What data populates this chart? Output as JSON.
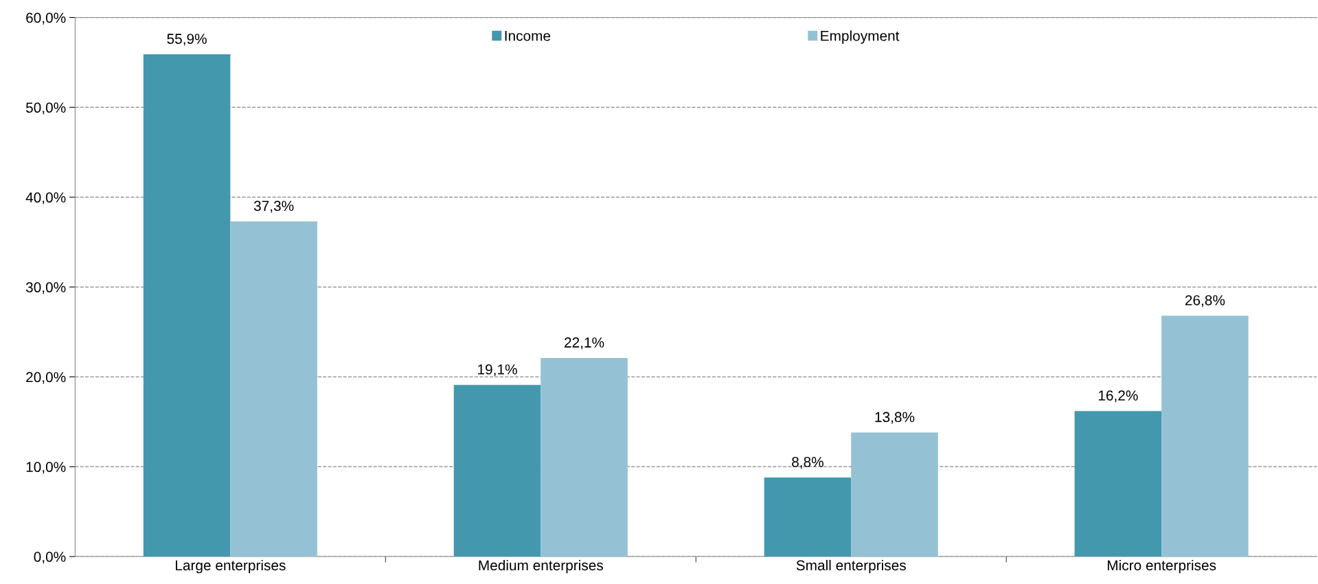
{
  "chart_data": {
    "type": "bar",
    "categories": [
      "Large enterprises",
      "Medium enterprises",
      "Small enterprises",
      "Micro enterprises"
    ],
    "series": [
      {
        "name": "Income",
        "color": "#4398ae",
        "values": [
          55.9,
          19.1,
          8.8,
          16.2
        ],
        "value_labels": [
          "55,9%",
          "19,1%",
          "8,8%",
          "16,2%"
        ]
      },
      {
        "name": "Employment",
        "color": "#94c2d4",
        "values": [
          37.3,
          22.1,
          13.8,
          26.8
        ],
        "value_labels": [
          "37,3%",
          "22,1%",
          "13,8%",
          "26,8%"
        ]
      }
    ],
    "ylim": [
      0,
      60
    ],
    "yticks": [
      {
        "value": 0,
        "label": "0,0%"
      },
      {
        "value": 10,
        "label": "10,0%"
      },
      {
        "value": 20,
        "label": "20,0%"
      },
      {
        "value": 30,
        "label": "30,0%"
      },
      {
        "value": 40,
        "label": "40,0%"
      },
      {
        "value": 50,
        "label": "50,0%"
      },
      {
        "value": 60,
        "label": "60,0%"
      }
    ],
    "grid": "y",
    "legend": "top"
  }
}
